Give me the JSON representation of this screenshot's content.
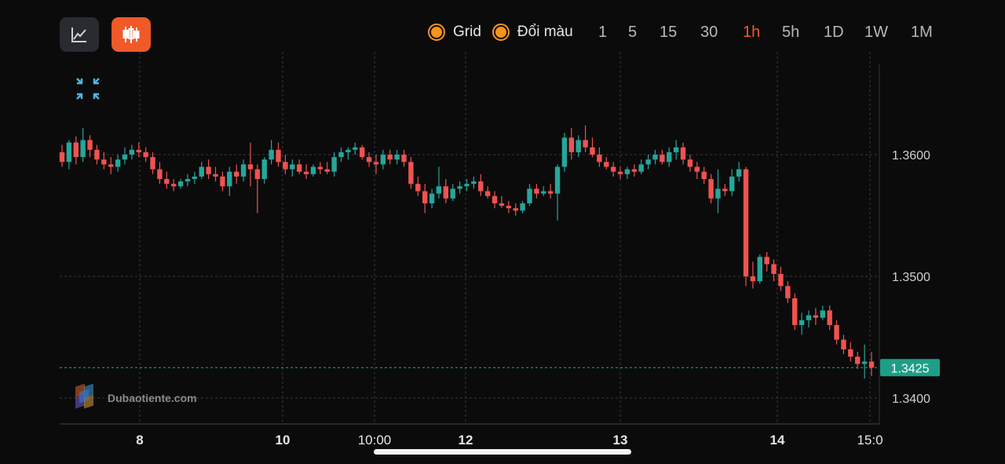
{
  "toolbar": {
    "line_icon": "line-chart-icon",
    "candle_icon": "candlestick-icon",
    "accent_color": "#f05a28",
    "grid_label": "Grid",
    "color_label": "Đổi màu",
    "toggle_color": "#f7931a",
    "intervals": [
      "1",
      "5",
      "15",
      "30",
      "1h",
      "5h",
      "1D",
      "1W",
      "1M"
    ],
    "active_interval": "1h"
  },
  "collapse_icon": "collapse-icon",
  "watermark": {
    "text": "Dubaotiente.com",
    "logo_icon": "dubaotiente-logo-icon"
  },
  "chart_data": {
    "type": "candlestick",
    "up_color": "#26a69a",
    "down_color": "#ef5350",
    "grid": true,
    "ylim": [
      1.3385,
      1.3675
    ],
    "y_ticks": [
      "1.3600",
      "1.3500",
      "1.3400"
    ],
    "last_price": "1.3425",
    "x_ticks": [
      "8",
      "10",
      "10:00",
      "12",
      "13",
      "14",
      "15:0"
    ],
    "candles": [
      [
        1.3602,
        1.3608,
        1.359,
        1.3594
      ],
      [
        1.3594,
        1.3612,
        1.3588,
        1.361
      ],
      [
        1.361,
        1.3615,
        1.3592,
        1.3598
      ],
      [
        1.3598,
        1.3622,
        1.3594,
        1.3612
      ],
      [
        1.3612,
        1.3616,
        1.3598,
        1.3604
      ],
      [
        1.3604,
        1.3608,
        1.3592,
        1.3596
      ],
      [
        1.3596,
        1.3602,
        1.3588,
        1.3592
      ],
      [
        1.3592,
        1.3598,
        1.3584,
        1.359
      ],
      [
        1.359,
        1.36,
        1.3586,
        1.3596
      ],
      [
        1.3596,
        1.3606,
        1.3592,
        1.36
      ],
      [
        1.36,
        1.3608,
        1.3596,
        1.3604
      ],
      [
        1.3604,
        1.361,
        1.3598,
        1.3602
      ],
      [
        1.3602,
        1.3606,
        1.3594,
        1.3598
      ],
      [
        1.3598,
        1.3602,
        1.3584,
        1.3588
      ],
      [
        1.3588,
        1.3594,
        1.3576,
        1.358
      ],
      [
        1.358,
        1.3586,
        1.3572,
        1.3576
      ],
      [
        1.3576,
        1.358,
        1.357,
        1.3574
      ],
      [
        1.3574,
        1.358,
        1.3572,
        1.3578
      ],
      [
        1.3578,
        1.3584,
        1.3574,
        1.358
      ],
      [
        1.358,
        1.3586,
        1.3576,
        1.3582
      ],
      [
        1.3582,
        1.3594,
        1.358,
        1.359
      ],
      [
        1.359,
        1.3596,
        1.358,
        1.3584
      ],
      [
        1.3584,
        1.359,
        1.3578,
        1.3582
      ],
      [
        1.3582,
        1.3586,
        1.357,
        1.3574
      ],
      [
        1.3574,
        1.359,
        1.3566,
        1.3586
      ],
      [
        1.3586,
        1.3592,
        1.3576,
        1.3582
      ],
      [
        1.3582,
        1.3596,
        1.3578,
        1.3592
      ],
      [
        1.3592,
        1.361,
        1.3574,
        1.3588
      ],
      [
        1.3588,
        1.3592,
        1.3552,
        1.358
      ],
      [
        1.358,
        1.3598,
        1.3576,
        1.3596
      ],
      [
        1.3596,
        1.3612,
        1.3592,
        1.3604
      ],
      [
        1.3604,
        1.361,
        1.359,
        1.3594
      ],
      [
        1.3594,
        1.36,
        1.3584,
        1.3588
      ],
      [
        1.3588,
        1.3596,
        1.3582,
        1.3592
      ],
      [
        1.3592,
        1.3596,
        1.3584,
        1.3586
      ],
      [
        1.3586,
        1.3592,
        1.358,
        1.3584
      ],
      [
        1.3584,
        1.3592,
        1.3582,
        1.359
      ],
      [
        1.359,
        1.3594,
        1.3584,
        1.3588
      ],
      [
        1.3588,
        1.3594,
        1.3584,
        1.3586
      ],
      [
        1.3586,
        1.3602,
        1.3582,
        1.3598
      ],
      [
        1.3598,
        1.3606,
        1.3594,
        1.3602
      ],
      [
        1.3602,
        1.3606,
        1.3596,
        1.3604
      ],
      [
        1.3604,
        1.361,
        1.36,
        1.3606
      ],
      [
        1.3606,
        1.3608,
        1.3596,
        1.3598
      ],
      [
        1.3598,
        1.3602,
        1.359,
        1.3594
      ],
      [
        1.3594,
        1.36,
        1.3584,
        1.3592
      ],
      [
        1.3592,
        1.3604,
        1.3588,
        1.36
      ],
      [
        1.36,
        1.3604,
        1.3592,
        1.3596
      ],
      [
        1.3596,
        1.3604,
        1.3592,
        1.36
      ],
      [
        1.36,
        1.3604,
        1.359,
        1.3594
      ],
      [
        1.3594,
        1.3598,
        1.3572,
        1.3576
      ],
      [
        1.3576,
        1.3582,
        1.3566,
        1.357
      ],
      [
        1.357,
        1.3576,
        1.3552,
        1.356
      ],
      [
        1.356,
        1.3572,
        1.3556,
        1.3568
      ],
      [
        1.3568,
        1.359,
        1.3564,
        1.3574
      ],
      [
        1.3574,
        1.358,
        1.356,
        1.3564
      ],
      [
        1.3564,
        1.3576,
        1.3562,
        1.3572
      ],
      [
        1.3572,
        1.3578,
        1.3568,
        1.3574
      ],
      [
        1.3574,
        1.358,
        1.357,
        1.3576
      ],
      [
        1.3576,
        1.3582,
        1.3572,
        1.3578
      ],
      [
        1.3578,
        1.3584,
        1.3566,
        1.357
      ],
      [
        1.357,
        1.3574,
        1.3564,
        1.3566
      ],
      [
        1.3566,
        1.357,
        1.3556,
        1.356
      ],
      [
        1.356,
        1.3566,
        1.3556,
        1.3558
      ],
      [
        1.3558,
        1.3562,
        1.3552,
        1.3556
      ],
      [
        1.3556,
        1.356,
        1.355,
        1.3554
      ],
      [
        1.3554,
        1.3562,
        1.3552,
        1.356
      ],
      [
        1.356,
        1.3576,
        1.3558,
        1.3572
      ],
      [
        1.3572,
        1.3576,
        1.3564,
        1.3568
      ],
      [
        1.3568,
        1.3574,
        1.3566,
        1.357
      ],
      [
        1.357,
        1.3576,
        1.3564,
        1.3568
      ],
      [
        1.3568,
        1.3592,
        1.3546,
        1.359
      ],
      [
        1.359,
        1.3618,
        1.3586,
        1.3614
      ],
      [
        1.3614,
        1.3622,
        1.3596,
        1.3602
      ],
      [
        1.3602,
        1.3616,
        1.3598,
        1.3612
      ],
      [
        1.3612,
        1.3624,
        1.3602,
        1.3606
      ],
      [
        1.3606,
        1.3614,
        1.3598,
        1.36
      ],
      [
        1.36,
        1.3606,
        1.359,
        1.3594
      ],
      [
        1.3594,
        1.3598,
        1.3588,
        1.359
      ],
      [
        1.359,
        1.3594,
        1.3582,
        1.3586
      ],
      [
        1.3586,
        1.359,
        1.358,
        1.3584
      ],
      [
        1.3584,
        1.359,
        1.358,
        1.3588
      ],
      [
        1.3588,
        1.3592,
        1.3582,
        1.3586
      ],
      [
        1.3586,
        1.3596,
        1.3584,
        1.3592
      ],
      [
        1.3592,
        1.36,
        1.3588,
        1.3596
      ],
      [
        1.3596,
        1.3604,
        1.3592,
        1.36
      ],
      [
        1.36,
        1.3604,
        1.3592,
        1.3594
      ],
      [
        1.3594,
        1.3606,
        1.359,
        1.3602
      ],
      [
        1.3602,
        1.3612,
        1.3596,
        1.3606
      ],
      [
        1.3606,
        1.361,
        1.3592,
        1.3596
      ],
      [
        1.3596,
        1.36,
        1.3586,
        1.359
      ],
      [
        1.359,
        1.3594,
        1.358,
        1.3586
      ],
      [
        1.3586,
        1.359,
        1.3576,
        1.358
      ],
      [
        1.358,
        1.3584,
        1.356,
        1.3564
      ],
      [
        1.3564,
        1.3588,
        1.3552,
        1.3572
      ],
      [
        1.3572,
        1.3576,
        1.3566,
        1.357
      ],
      [
        1.357,
        1.3588,
        1.3566,
        1.3582
      ],
      [
        1.3582,
        1.3594,
        1.3578,
        1.3588
      ],
      [
        1.3588,
        1.359,
        1.3492,
        1.35
      ],
      [
        1.35,
        1.3512,
        1.349,
        1.3496
      ],
      [
        1.3496,
        1.3518,
        1.3494,
        1.3516
      ],
      [
        1.3516,
        1.352,
        1.3504,
        1.351
      ],
      [
        1.351,
        1.3514,
        1.3496,
        1.3502
      ],
      [
        1.3502,
        1.3508,
        1.3488,
        1.3492
      ],
      [
        1.3492,
        1.3496,
        1.3478,
        1.3482
      ],
      [
        1.3482,
        1.3486,
        1.3456,
        1.346
      ],
      [
        1.346,
        1.347,
        1.3452,
        1.3464
      ],
      [
        1.3464,
        1.3472,
        1.3458,
        1.3468
      ],
      [
        1.3468,
        1.3474,
        1.346,
        1.3466
      ],
      [
        1.3466,
        1.3476,
        1.3464,
        1.3472
      ],
      [
        1.3472,
        1.3476,
        1.3456,
        1.346
      ],
      [
        1.346,
        1.3464,
        1.3444,
        1.3448
      ],
      [
        1.3448,
        1.3452,
        1.3436,
        1.344
      ],
      [
        1.344,
        1.3446,
        1.343,
        1.3434
      ],
      [
        1.3434,
        1.3438,
        1.3424,
        1.3428
      ],
      [
        1.3428,
        1.3444,
        1.3416,
        1.343
      ],
      [
        1.343,
        1.3438,
        1.3418,
        1.3425
      ]
    ]
  }
}
